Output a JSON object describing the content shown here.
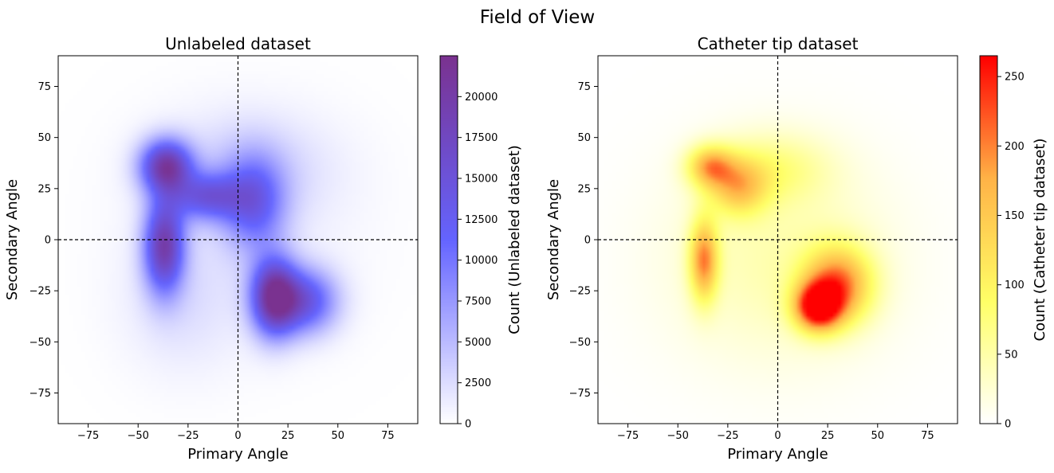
{
  "figure": {
    "title": "Field of View"
  },
  "chart_data": [
    {
      "type": "heatmap",
      "title": "Unlabeled dataset",
      "xlabel": "Primary Angle",
      "ylabel": "Secondary Angle",
      "xlim": [
        -90,
        90
      ],
      "ylim": [
        -90,
        90
      ],
      "xticks": [
        -75,
        -50,
        -25,
        0,
        25,
        50,
        75
      ],
      "yticks": [
        -75,
        -50,
        -25,
        0,
        25,
        50,
        75
      ],
      "reference_lines": {
        "x": 0,
        "y": 0,
        "style": "dashed"
      },
      "colorbar": {
        "label": "Count (Unlabeled dataset)",
        "min": 0,
        "max": 22500,
        "ticks": [
          0,
          2500,
          5000,
          7500,
          10000,
          12500,
          15000,
          17500,
          20000
        ],
        "colors": [
          "#ffffff",
          "#6464ff",
          "#7a3290"
        ]
      },
      "density_blobs": [
        {
          "x": -36,
          "y": 36,
          "sx": 9,
          "sy": 9,
          "peak": 19000
        },
        {
          "x": -37,
          "y": -3,
          "sx": 7,
          "sy": 16,
          "peak": 18500
        },
        {
          "x": -16,
          "y": 21,
          "sx": 12,
          "sy": 8,
          "peak": 11500
        },
        {
          "x": 8,
          "y": 18,
          "sx": 11,
          "sy": 16,
          "peak": 11000
        },
        {
          "x": 18,
          "y": -28,
          "sx": 8,
          "sy": 13,
          "peak": 21000
        },
        {
          "x": 34,
          "y": -30,
          "sx": 11,
          "sy": 11,
          "peak": 13000
        },
        {
          "x": 5,
          "y": 35,
          "sx": 28,
          "sy": 18,
          "peak": 3000
        },
        {
          "x": -28,
          "y": -30,
          "sx": 20,
          "sy": 24,
          "peak": 2000
        },
        {
          "x": 5,
          "y": 5,
          "sx": 42,
          "sy": 40,
          "peak": 1000
        }
      ]
    },
    {
      "type": "heatmap",
      "title": "Catheter tip dataset",
      "xlabel": "Primary Angle",
      "ylabel": "Secondary Angle",
      "xlim": [
        -90,
        90
      ],
      "ylim": [
        -90,
        90
      ],
      "xticks": [
        -75,
        -50,
        -25,
        0,
        25,
        50,
        75
      ],
      "yticks": [
        -75,
        -50,
        -25,
        0,
        25,
        50,
        75
      ],
      "reference_lines": {
        "x": 0,
        "y": 0,
        "style": "dashed"
      },
      "colorbar": {
        "label": "Count (Catheter tip dataset)",
        "min": 0,
        "max": 265,
        "ticks": [
          0,
          50,
          100,
          150,
          200,
          250
        ],
        "colors": [
          "#ffffff",
          "#ffff66",
          "#ffb347",
          "#ff0000"
        ]
      },
      "density_blobs": [
        {
          "x": -34,
          "y": 36,
          "sx": 8,
          "sy": 7,
          "peak": 150
        },
        {
          "x": -20,
          "y": 26,
          "sx": 10,
          "sy": 10,
          "peak": 125
        },
        {
          "x": -37,
          "y": -10,
          "sx": 5,
          "sy": 14,
          "peak": 180
        },
        {
          "x": 20,
          "y": -33,
          "sx": 8,
          "sy": 8,
          "peak": 250
        },
        {
          "x": 30,
          "y": -22,
          "sx": 12,
          "sy": 13,
          "peak": 190
        },
        {
          "x": -2,
          "y": 35,
          "sx": 20,
          "sy": 12,
          "peak": 60
        },
        {
          "x": 0,
          "y": -10,
          "sx": 38,
          "sy": 35,
          "peak": 45
        }
      ]
    }
  ]
}
